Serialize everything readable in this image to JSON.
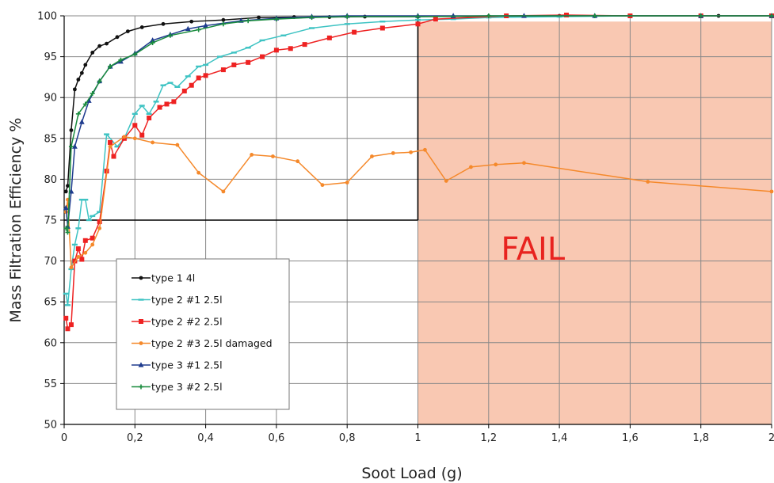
{
  "chart_data": {
    "type": "line",
    "title": "",
    "xlabel": "Soot Load (g)",
    "ylabel": "Mass Filtration Efficiency %",
    "xlim": [
      0,
      2
    ],
    "ylim": [
      50,
      100
    ],
    "x_ticks": [
      "0",
      "0,2",
      "0,4",
      "0,6",
      "0,8",
      "1",
      "1,2",
      "1,4",
      "1,6",
      "1,8",
      "2"
    ],
    "y_ticks": [
      "50",
      "55",
      "60",
      "65",
      "70",
      "75",
      "80",
      "85",
      "90",
      "95",
      "100"
    ],
    "grid": true,
    "legend_position": "bottom-left",
    "fail_region": {
      "x_from": 1,
      "x_to": 2,
      "y_from": 50,
      "y_to": 99.3,
      "label": "FAIL",
      "color": "#f9c8b2",
      "label_color": "#e8231f"
    },
    "threshold_lines": [
      {
        "axis": "x",
        "value": 1,
        "from": 75,
        "to": 100,
        "color": "#000000"
      },
      {
        "axis": "y",
        "value": 75,
        "from": 0,
        "to": 1,
        "color": "#000000"
      }
    ],
    "series": [
      {
        "name": "type 1 4l",
        "color": "#111111",
        "marker": "dot",
        "points": [
          [
            0.005,
            78.5
          ],
          [
            0.01,
            79.2
          ],
          [
            0.02,
            86
          ],
          [
            0.03,
            91
          ],
          [
            0.04,
            92.2
          ],
          [
            0.05,
            93
          ],
          [
            0.06,
            94
          ],
          [
            0.08,
            95.5
          ],
          [
            0.1,
            96.3
          ],
          [
            0.12,
            96.6
          ],
          [
            0.15,
            97.4
          ],
          [
            0.18,
            98.1
          ],
          [
            0.22,
            98.6
          ],
          [
            0.28,
            99
          ],
          [
            0.36,
            99.3
          ],
          [
            0.45,
            99.5
          ],
          [
            0.55,
            99.8
          ],
          [
            0.65,
            99.85
          ],
          [
            0.75,
            99.85
          ],
          [
            0.85,
            99.9
          ],
          [
            1.0,
            99.9
          ],
          [
            1.2,
            99.95
          ],
          [
            1.4,
            100
          ],
          [
            1.6,
            100
          ],
          [
            1.85,
            100
          ],
          [
            2.0,
            100
          ]
        ]
      },
      {
        "name": "type 2 #1 2.5l",
        "color": "#3ec3c3",
        "marker": "dash",
        "points": [
          [
            0.005,
            66
          ],
          [
            0.01,
            64.6
          ],
          [
            0.02,
            69
          ],
          [
            0.03,
            72
          ],
          [
            0.04,
            74
          ],
          [
            0.05,
            77.5
          ],
          [
            0.06,
            77.5
          ],
          [
            0.07,
            75
          ],
          [
            0.08,
            75.5
          ],
          [
            0.1,
            76
          ],
          [
            0.12,
            85.5
          ],
          [
            0.15,
            84
          ],
          [
            0.17,
            85
          ],
          [
            0.2,
            88
          ],
          [
            0.22,
            89
          ],
          [
            0.24,
            88
          ],
          [
            0.26,
            89.5
          ],
          [
            0.28,
            91.5
          ],
          [
            0.3,
            91.8
          ],
          [
            0.32,
            91.3
          ],
          [
            0.35,
            92.6
          ],
          [
            0.38,
            93.8
          ],
          [
            0.4,
            94
          ],
          [
            0.44,
            95
          ],
          [
            0.48,
            95.5
          ],
          [
            0.52,
            96.1
          ],
          [
            0.56,
            97
          ],
          [
            0.62,
            97.6
          ],
          [
            0.7,
            98.5
          ],
          [
            0.8,
            99
          ],
          [
            0.9,
            99.3
          ],
          [
            1.0,
            99.5
          ],
          [
            1.1,
            99.6
          ],
          [
            1.2,
            99.8
          ],
          [
            1.4,
            99.9
          ],
          [
            1.6,
            100
          ],
          [
            1.8,
            100
          ],
          [
            2.0,
            100
          ]
        ]
      },
      {
        "name": "type 2 #2 2.5l",
        "color": "#ee2222",
        "marker": "square",
        "points": [
          [
            0.005,
            63
          ],
          [
            0.01,
            61.7
          ],
          [
            0.02,
            62.2
          ],
          [
            0.03,
            70
          ],
          [
            0.04,
            71.5
          ],
          [
            0.05,
            70.2
          ],
          [
            0.06,
            72.5
          ],
          [
            0.08,
            72.8
          ],
          [
            0.1,
            74.8
          ],
          [
            0.12,
            81
          ],
          [
            0.13,
            84.5
          ],
          [
            0.14,
            82.8
          ],
          [
            0.17,
            85
          ],
          [
            0.2,
            86.6
          ],
          [
            0.22,
            85.4
          ],
          [
            0.24,
            87.5
          ],
          [
            0.27,
            88.8
          ],
          [
            0.29,
            89.2
          ],
          [
            0.31,
            89.5
          ],
          [
            0.34,
            90.8
          ],
          [
            0.36,
            91.5
          ],
          [
            0.38,
            92.4
          ],
          [
            0.4,
            92.7
          ],
          [
            0.45,
            93.4
          ],
          [
            0.48,
            94
          ],
          [
            0.52,
            94.3
          ],
          [
            0.56,
            95
          ],
          [
            0.6,
            95.8
          ],
          [
            0.64,
            96
          ],
          [
            0.68,
            96.5
          ],
          [
            0.75,
            97.3
          ],
          [
            0.82,
            98
          ],
          [
            0.9,
            98.5
          ],
          [
            1.0,
            99
          ],
          [
            1.05,
            99.6
          ],
          [
            1.25,
            100
          ],
          [
            1.42,
            100.1
          ],
          [
            1.6,
            100
          ],
          [
            1.8,
            100
          ],
          [
            2.0,
            100
          ]
        ]
      },
      {
        "name": "type 2 #3 2.5l damaged",
        "color": "#f5892b",
        "marker": "dot",
        "points": [
          [
            0.005,
            76
          ],
          [
            0.01,
            77.5
          ],
          [
            0.02,
            69.2
          ],
          [
            0.04,
            70.5
          ],
          [
            0.06,
            71
          ],
          [
            0.08,
            72
          ],
          [
            0.1,
            74
          ],
          [
            0.13,
            84
          ],
          [
            0.17,
            85.2
          ],
          [
            0.2,
            85
          ],
          [
            0.25,
            84.5
          ],
          [
            0.32,
            84.2
          ],
          [
            0.38,
            80.8
          ],
          [
            0.45,
            78.5
          ],
          [
            0.53,
            83
          ],
          [
            0.59,
            82.8
          ],
          [
            0.66,
            82.2
          ],
          [
            0.73,
            79.3
          ],
          [
            0.8,
            79.6
          ],
          [
            0.87,
            82.8
          ],
          [
            0.93,
            83.2
          ],
          [
            0.98,
            83.3
          ],
          [
            1.02,
            83.6
          ],
          [
            1.08,
            79.8
          ],
          [
            1.15,
            81.5
          ],
          [
            1.22,
            81.8
          ],
          [
            1.3,
            82
          ],
          [
            1.65,
            79.7
          ],
          [
            2.0,
            78.5
          ]
        ]
      },
      {
        "name": "type 3 #1 2.5l",
        "color": "#1e3b8e",
        "marker": "triangle",
        "points": [
          [
            0.005,
            76.5
          ],
          [
            0.01,
            74.2
          ],
          [
            0.02,
            78.5
          ],
          [
            0.03,
            84
          ],
          [
            0.05,
            87
          ],
          [
            0.07,
            89.6
          ],
          [
            0.1,
            92
          ],
          [
            0.13,
            93.8
          ],
          [
            0.16,
            94.4
          ],
          [
            0.2,
            95.4
          ],
          [
            0.25,
            97
          ],
          [
            0.3,
            97.7
          ],
          [
            0.35,
            98.4
          ],
          [
            0.4,
            98.8
          ],
          [
            0.5,
            99.4
          ],
          [
            0.6,
            99.7
          ],
          [
            0.7,
            99.9
          ],
          [
            0.8,
            100
          ],
          [
            1.0,
            100
          ],
          [
            1.1,
            100
          ],
          [
            1.3,
            100
          ],
          [
            1.5,
            100
          ],
          [
            1.8,
            100
          ],
          [
            2.0,
            100
          ]
        ]
      },
      {
        "name": "type 3 #2 2.5l",
        "color": "#1a8c3e",
        "marker": "cross",
        "points": [
          [
            0.005,
            74
          ],
          [
            0.01,
            73.5
          ],
          [
            0.02,
            84
          ],
          [
            0.04,
            88
          ],
          [
            0.06,
            89.2
          ],
          [
            0.08,
            90.5
          ],
          [
            0.1,
            92
          ],
          [
            0.13,
            93.8
          ],
          [
            0.16,
            94.6
          ],
          [
            0.2,
            95.3
          ],
          [
            0.25,
            96.7
          ],
          [
            0.3,
            97.6
          ],
          [
            0.38,
            98.3
          ],
          [
            0.45,
            99
          ],
          [
            0.52,
            99.4
          ],
          [
            0.6,
            99.6
          ],
          [
            0.7,
            99.8
          ],
          [
            0.8,
            99.9
          ],
          [
            1.0,
            99.9
          ],
          [
            1.2,
            100
          ],
          [
            1.5,
            100
          ],
          [
            1.8,
            100
          ],
          [
            2.0,
            100
          ]
        ]
      }
    ]
  }
}
